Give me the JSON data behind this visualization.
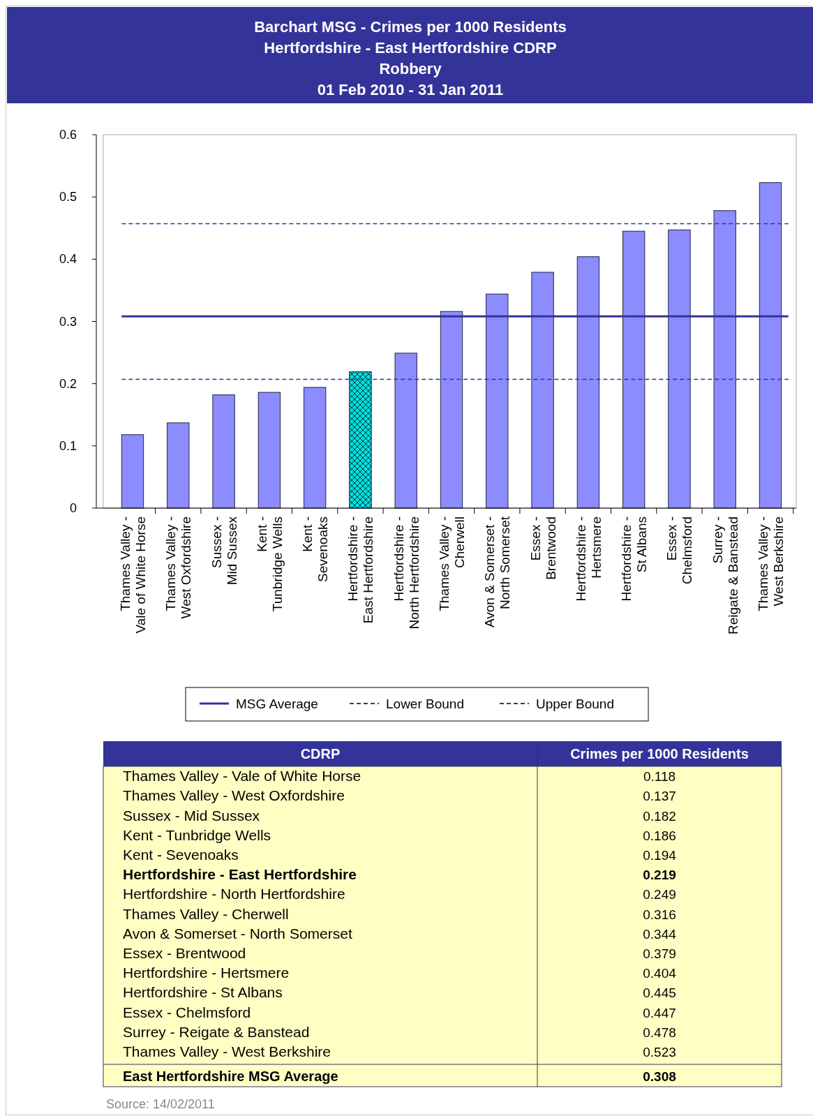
{
  "chart_data": [
    {
      "type": "bar",
      "title": "Barchart MSG - Crimes per 1000 Residents",
      "subtitle": "Hertfordshire - East Hertfordshire CDRP\nRobbery\n01 Feb 2010 - 31 Jan 2011",
      "categories": [
        "Thames Valley - Vale of White Horse",
        "Thames Valley - West Oxfordshire",
        "Sussex - Mid Sussex",
        "Kent - Tunbridge Wells",
        "Kent - Sevenoaks",
        "Hertfordshire - East Hertfordshire",
        "Hertfordshire - North Hertfordshire",
        "Thames Valley - Cherwell",
        "Avon & Somerset - North Somerset",
        "Essex - Brentwood",
        "Hertfordshire - Hertsmere",
        "Hertfordshire - St Albans",
        "Essex - Chelmsford",
        "Surrey - Reigate & Banstead",
        "Thames Valley - West Berkshire"
      ],
      "values": [
        0.118,
        0.137,
        0.182,
        0.186,
        0.194,
        0.219,
        0.249,
        0.316,
        0.344,
        0.379,
        0.404,
        0.445,
        0.447,
        0.478,
        0.523
      ],
      "colors": [
        "#8c8cff",
        "#8c8cff",
        "#8c8cff",
        "#8c8cff",
        "#8c8cff",
        "#00e0e0",
        "#8c8cff",
        "#8c8cff",
        "#8c8cff",
        "#8c8cff",
        "#8c8cff",
        "#8c8cff",
        "#8c8cff",
        "#8c8cff",
        "#8c8cff"
      ],
      "ylim": [
        0,
        0.6
      ],
      "yticks": [
        0,
        0.1,
        0.2,
        0.3,
        0.4,
        0.5,
        0.6
      ],
      "legend": "bottom",
      "ref_lines": [
        {
          "axis": "y",
          "value": 0.308,
          "label": "MSG Average",
          "color": "#333399",
          "line_style": "solid"
        },
        {
          "axis": "y",
          "value": 0.207,
          "label": "Lower Bound",
          "color": "#333399",
          "line_style": "dashed"
        },
        {
          "axis": "y",
          "value": 0.457,
          "label": "Upper Bound",
          "color": "#333399",
          "line_style": "dashed"
        }
      ]
    },
    {
      "type": "other",
      "categories": [
        "Thames Valley - Vale of White Horse",
        "Thames Valley - West Oxfordshire",
        "Sussex - Mid Sussex",
        "Kent - Tunbridge Wells",
        "Kent - Sevenoaks",
        "Hertfordshire - East Hertfordshire",
        "Hertfordshire - North Hertfordshire",
        "Thames Valley - Cherwell",
        "Avon & Somerset - North Somerset",
        "Essex - Brentwood",
        "Hertfordshire - Hertsmere",
        "Hertfordshire - St Albans",
        "Essex - Chelmsford",
        "Surrey - Reigate & Banstead",
        "Thames Valley - West Berkshire",
        "East Hertfordshire MSG Average"
      ],
      "values": [
        0.118,
        0.137,
        0.182,
        0.186,
        0.194,
        0.219,
        0.249,
        0.316,
        0.344,
        0.379,
        0.404,
        0.445,
        0.447,
        0.478,
        0.523,
        0.308
      ],
      "data_labels": true,
      "annotations": [
        "CDRP",
        "Crimes per 1000 Residents",
        "Source: 14/02/2011"
      ]
    }
  ]
}
